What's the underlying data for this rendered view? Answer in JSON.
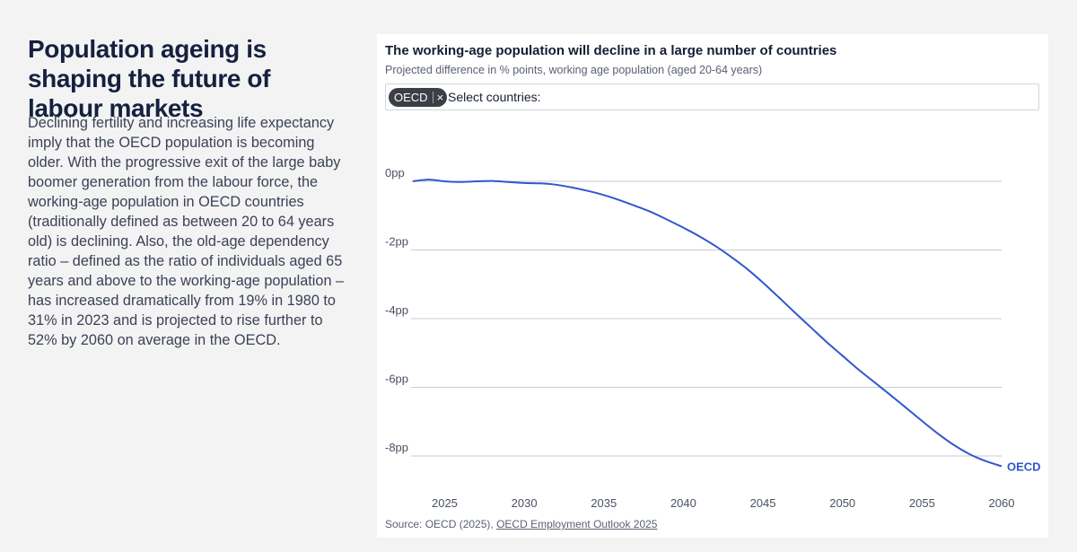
{
  "intro": {
    "headline": "Population ageing is shaping the future of labour markets",
    "body": "Declining fertility and increasing life expectancy imply that the OECD population is becoming older. With the progressive exit of the large baby boomer generation from the labour force, the working-age population in OECD countries (traditionally defined as between 20 to 64 years old) is declining. Also, the old-age dependency ratio – defined as the ratio of individuals aged 65 years and above to the working-age population – has increased dramatically from 19% in 1980 to 31% in 2023 and is projected to rise further to 52% by 2060 on average in the OECD."
  },
  "selector": {
    "chip_label": "OECD",
    "chip_close": "×",
    "placeholder": "Select countries:"
  },
  "source": {
    "prefix": "Source: OECD (2025), ",
    "link_text": "OECD Employment Outlook 2025"
  },
  "colors": {
    "line": "#2f58cd",
    "grid": "#c9cbd0",
    "axis_text": "#4a5163"
  },
  "chart_data": {
    "type": "line",
    "title": "The working-age population will decline in a large number of countries",
    "subtitle": "Projected difference in % points, working age population (aged 20-64 years)",
    "xlabel": "",
    "ylabel": "",
    "xlim": [
      2023,
      2060
    ],
    "ylim": [
      -8,
      0
    ],
    "x_ticks": [
      2025,
      2030,
      2035,
      2040,
      2045,
      2050,
      2055,
      2060
    ],
    "y_ticks": [
      0,
      -2,
      -4,
      -6,
      -8
    ],
    "y_tick_labels": [
      "0pp",
      "-2pp",
      "-4pp",
      "-6pp",
      "-8pp"
    ],
    "grid": true,
    "series": [
      {
        "name": "OECD",
        "x": [
          2023,
          2024,
          2025,
          2026,
          2027,
          2028,
          2029,
          2030,
          2031,
          2032,
          2033,
          2034,
          2035,
          2036,
          2037,
          2038,
          2039,
          2040,
          2041,
          2042,
          2043,
          2044,
          2045,
          2046,
          2047,
          2048,
          2049,
          2050,
          2051,
          2052,
          2053,
          2054,
          2055,
          2056,
          2057,
          2058,
          2059,
          2060
        ],
        "values": [
          0.0,
          0.05,
          0.0,
          -0.02,
          0.0,
          0.01,
          -0.02,
          -0.05,
          -0.06,
          -0.1,
          -0.18,
          -0.28,
          -0.4,
          -0.55,
          -0.72,
          -0.9,
          -1.12,
          -1.35,
          -1.6,
          -1.88,
          -2.2,
          -2.55,
          -2.95,
          -3.38,
          -3.82,
          -4.25,
          -4.68,
          -5.08,
          -5.48,
          -5.85,
          -6.22,
          -6.6,
          -6.98,
          -7.35,
          -7.68,
          -7.95,
          -8.15,
          -8.3
        ]
      }
    ]
  }
}
